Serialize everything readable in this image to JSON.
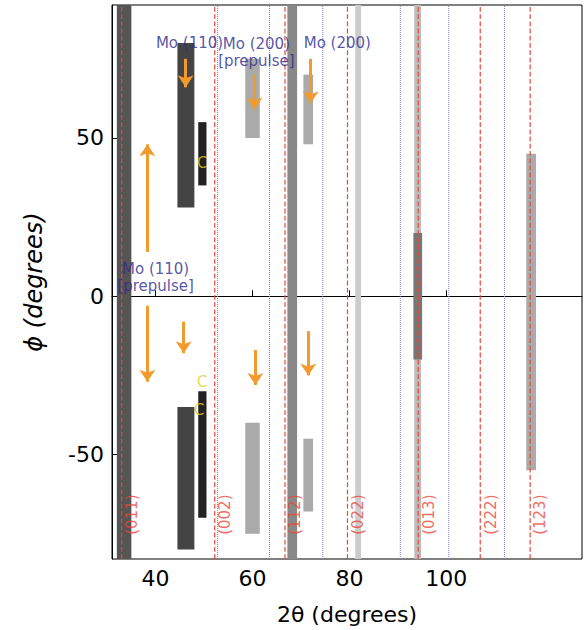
{
  "chart_data": {
    "type": "image",
    "xlabel": "2θ (degrees)",
    "ylabel": "ϕ (degrees)",
    "xlim": [
      31,
      128
    ],
    "ylim": [
      -83,
      92
    ],
    "xticks": [
      40,
      60,
      80,
      100
    ],
    "yticks": [
      -50,
      0,
      50
    ],
    "grid": false,
    "reflections": {
      "labels": [
        "(011)",
        "(002)",
        "(112)",
        "(022)",
        "(013)",
        "(222)",
        "(123)"
      ],
      "x": [
        33.0,
        52.2,
        66.7,
        79.6,
        94.2,
        107.0,
        117.3
      ],
      "color": "#e8463a",
      "line_style": "dashed"
    },
    "references": {
      "x": [
        52.8,
        63.5,
        74.5,
        90.5,
        100.5,
        112.0
      ],
      "color": "#7b7bd6",
      "line_style": "dotted"
    },
    "bands": {
      "x": [
        [
          32,
          35
        ],
        [
          44.5,
          48
        ],
        [
          44.5,
          48
        ],
        [
          48.8,
          50.5
        ],
        [
          48.8,
          50.5
        ],
        [
          58.5,
          61.5
        ],
        [
          58.5,
          61.5
        ],
        [
          67.2,
          69.2
        ],
        [
          70.5,
          72.5
        ],
        [
          70.5,
          72.5
        ],
        [
          81.2,
          82.4
        ],
        [
          93.4,
          94.8
        ],
        [
          93.2,
          95
        ],
        [
          116.5,
          118.5
        ]
      ],
      "phi": [
        [
          -83,
          92
        ],
        [
          28,
          80
        ],
        [
          -80,
          -35
        ],
        [
          35,
          55
        ],
        [
          -70,
          -30
        ],
        [
          50,
          75
        ],
        [
          -75,
          -40
        ],
        [
          -83,
          92
        ],
        [
          48,
          70
        ],
        [
          -68,
          -45
        ],
        [
          -83,
          92
        ],
        [
          -83,
          92
        ],
        [
          -20,
          20
        ],
        [
          -55,
          45
        ]
      ],
      "colors": [
        "#555555",
        "#444444",
        "#444444",
        "#222222",
        "#222222",
        "#aaaaaa",
        "#aaaaaa",
        "#888888",
        "#aaaaaa",
        "#aaaaaa",
        "#cccccc",
        "#bbbbbb",
        "#777777",
        "#aaaaaa"
      ]
    },
    "arrows": {
      "from": [
        [
          46.2,
          75
        ],
        [
          60.4,
          70
        ],
        [
          72,
          75
        ],
        [
          38.3,
          14
        ],
        [
          38.3,
          -3
        ],
        [
          45.8,
          -8
        ],
        [
          60.6,
          -17
        ],
        [
          71.5,
          -11
        ]
      ],
      "to": [
        [
          46.2,
          66
        ],
        [
          60.4,
          59
        ],
        [
          72,
          61
        ],
        [
          38.3,
          48
        ],
        [
          38.3,
          -27
        ],
        [
          45.8,
          -18
        ],
        [
          60.6,
          -28
        ],
        [
          71.5,
          -25
        ]
      ],
      "color": "#f39a2e"
    },
    "annotations": [
      {
        "text": "Mo (110)",
        "x": 47,
        "y": 80,
        "color": "#2b2b8f"
      },
      {
        "text": "Mo (200) [prepulse]",
        "x": 60.8,
        "y": 77,
        "color": "#2b2b8f"
      },
      {
        "text": "Mo (200)",
        "x": 77.5,
        "y": 80,
        "color": "#2b2b8f"
      },
      {
        "text": "Mo (110) [prepulse]",
        "x": 40,
        "y": 6,
        "color": "#2b2b8f"
      },
      {
        "text": "C",
        "x": 49.6,
        "y": 42,
        "color": "#e0cf1e"
      },
      {
        "text": "C",
        "x": 49.6,
        "y": -27,
        "color": "#e0cf1e"
      },
      {
        "text": "C",
        "x": 49,
        "y": -36,
        "color": "#e0cf1e"
      }
    ]
  }
}
